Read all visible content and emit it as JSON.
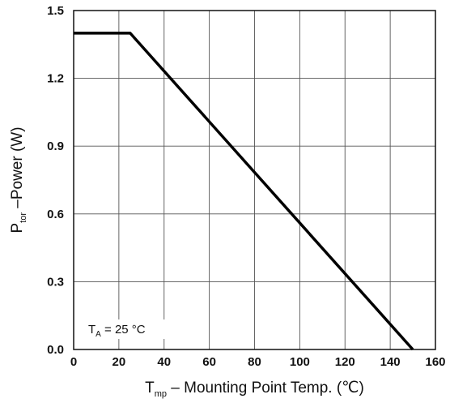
{
  "chart_data": {
    "type": "line",
    "series": [
      {
        "x": [
          0,
          25,
          150
        ],
        "y": [
          1.4,
          1.4,
          0.0
        ]
      }
    ],
    "xlim": [
      0,
      160
    ],
    "ylim": [
      0,
      1.5
    ],
    "x_ticks": [
      "0",
      "20",
      "40",
      "60",
      "80",
      "100",
      "120",
      "140",
      "160"
    ],
    "y_ticks": [
      "0.0",
      "0.3",
      "0.6",
      "0.9",
      "1.2",
      "1.5"
    ],
    "x_tick_values": [
      0,
      20,
      40,
      60,
      80,
      100,
      120,
      140,
      160
    ],
    "y_tick_values": [
      0,
      0.3,
      0.6,
      0.9,
      1.2,
      1.5
    ],
    "grid": true,
    "xlabel": {
      "main": "T",
      "sub": "mp",
      "rest": " – Mounting Point Temp. (℃)"
    },
    "ylabel": {
      "main": "P",
      "sub": "tor",
      "rest": " –Power (W)"
    },
    "annotation": {
      "main": "T",
      "sub": "A",
      "rest": " = 25 °C"
    },
    "line_color": "#000000",
    "grid_color": "#555555"
  }
}
